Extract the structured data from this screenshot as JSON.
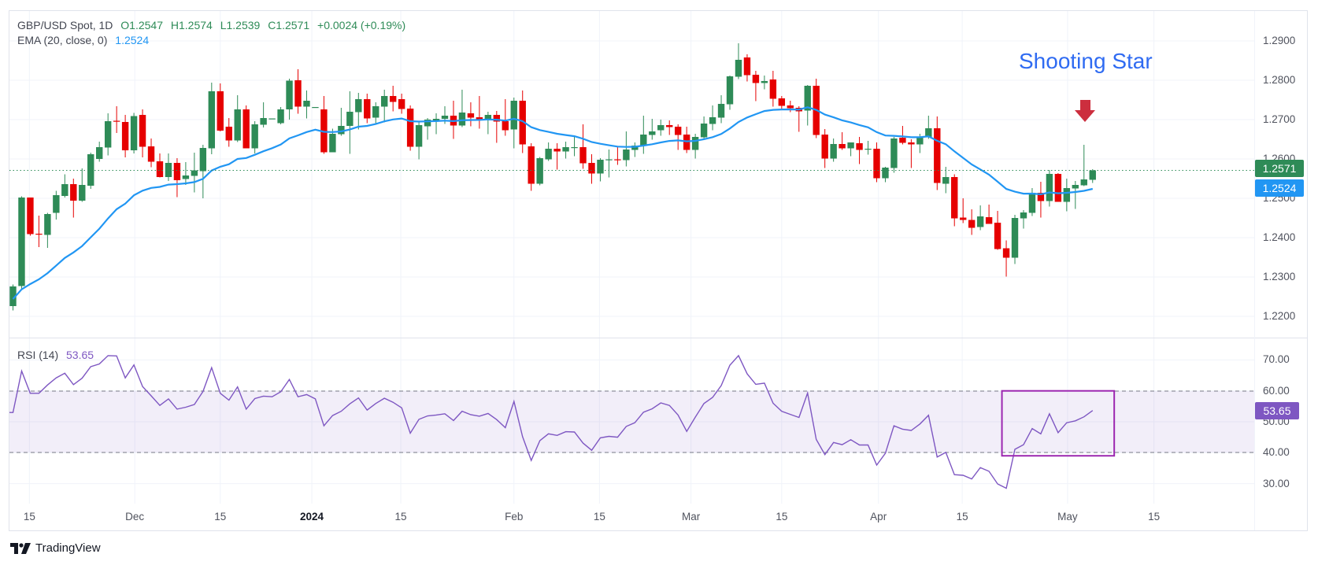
{
  "header": {
    "symbol": "GBP/USD Spot, 1D",
    "open": "O1.2547",
    "high": "H1.2574",
    "low": "L1.2539",
    "close": "C1.2571",
    "change": "+0.0024 (+0.19%)",
    "ema_label": "EMA (20, close, 0)",
    "ema_value": "1.2524",
    "rsi_label": "RSI (14)",
    "rsi_value": "53.65"
  },
  "price_tag": "1.2571",
  "ema_tag": "1.2524",
  "rsi_tag": "53.65",
  "annotation": {
    "text": "Shooting Star",
    "arrow": "down-arrow-icon",
    "arrow_color": "#cc2e3e"
  },
  "brand": {
    "name": "TradingView",
    "icon": "tradingview-logo-icon"
  },
  "colors": {
    "up": "#2e8b57",
    "down": "#e60000",
    "ema": "#2196f3",
    "rsi": "#7e57c2",
    "box": "#9c27b0",
    "grid": "#f0f3fa"
  },
  "chart_data": {
    "type": "candlestick",
    "title": "GBP/USD Spot, 1D",
    "price_ticks": [
      "1.2900",
      "1.2800",
      "1.2700",
      "1.2600",
      "1.2500",
      "1.2400",
      "1.2300",
      "1.2200"
    ],
    "price_range": [
      1.213,
      1.297
    ],
    "x_ticks": [
      {
        "label": "15",
        "bar": 1.9
      },
      {
        "label": "Dec",
        "bar": 14.1
      },
      {
        "label": "15",
        "bar": 24.0
      },
      {
        "label": "2024",
        "bar": 34.6,
        "bold": true
      },
      {
        "label": "15",
        "bar": 44.9
      },
      {
        "label": "Feb",
        "bar": 58.0
      },
      {
        "label": "15",
        "bar": 67.9
      },
      {
        "label": "Mar",
        "bar": 78.5
      },
      {
        "label": "15",
        "bar": 89.0
      },
      {
        "label": "Apr",
        "bar": 100.2
      },
      {
        "label": "15",
        "bar": 109.9
      },
      {
        "label": "May",
        "bar": 122.1
      },
      {
        "label": "15",
        "bar": 132.1
      }
    ],
    "ema_period": 20,
    "ema_seed": 1.2244,
    "last_close": 1.2571,
    "candles": [
      [
        1.2226,
        1.2281,
        1.2215,
        1.2276
      ],
      [
        1.2277,
        1.2505,
        1.2267,
        1.2502
      ],
      [
        1.2502,
        1.2502,
        1.2405,
        1.2409
      ],
      [
        1.241,
        1.2456,
        1.2376,
        1.2409
      ],
      [
        1.2407,
        1.2463,
        1.2374,
        1.246
      ],
      [
        1.2463,
        1.2519,
        1.2446,
        1.2508
      ],
      [
        1.2506,
        1.2561,
        1.2502,
        1.2536
      ],
      [
        1.2536,
        1.255,
        1.2451,
        1.2494
      ],
      [
        1.2494,
        1.2576,
        1.2491,
        1.2534
      ],
      [
        1.2532,
        1.2616,
        1.2524,
        1.2612
      ],
      [
        1.26,
        1.2644,
        1.2593,
        1.263
      ],
      [
        1.2629,
        1.2716,
        1.2609,
        1.2696
      ],
      [
        1.2697,
        1.2734,
        1.2666,
        1.2695
      ],
      [
        1.2694,
        1.2712,
        1.2604,
        1.2622
      ],
      [
        1.2622,
        1.2717,
        1.2614,
        1.2709
      ],
      [
        1.2712,
        1.2726,
        1.2604,
        1.2631
      ],
      [
        1.2632,
        1.2652,
        1.2579,
        1.2593
      ],
      [
        1.2594,
        1.2614,
        1.2553,
        1.2554
      ],
      [
        1.2554,
        1.2614,
        1.2544,
        1.259
      ],
      [
        1.259,
        1.2602,
        1.2503,
        1.2546
      ],
      [
        1.2549,
        1.2592,
        1.2534,
        1.2558
      ],
      [
        1.2557,
        1.2616,
        1.2515,
        1.2571
      ],
      [
        1.2569,
        1.2636,
        1.25,
        1.2628
      ],
      [
        1.2627,
        1.2794,
        1.2612,
        1.2772
      ],
      [
        1.2772,
        1.2792,
        1.267,
        1.2672
      ],
      [
        1.2682,
        1.2704,
        1.2631,
        1.2647
      ],
      [
        1.2647,
        1.2762,
        1.2643,
        1.2726
      ],
      [
        1.2726,
        1.2736,
        1.2627,
        1.2627
      ],
      [
        1.2627,
        1.2696,
        1.2614,
        1.2688
      ],
      [
        1.2687,
        1.2744,
        1.268,
        1.2704
      ],
      [
        1.2702,
        1.2703,
        1.2701,
        1.2703
      ],
      [
        1.2691,
        1.2732,
        1.2688,
        1.2726
      ],
      [
        1.2726,
        1.2804,
        1.27,
        1.2799
      ],
      [
        1.28,
        1.2828,
        1.2715,
        1.2733
      ],
      [
        1.2733,
        1.2774,
        1.2703,
        1.2748
      ],
      [
        1.2731,
        1.2732,
        1.273,
        1.2732
      ],
      [
        1.2726,
        1.276,
        1.2613,
        1.2617
      ],
      [
        1.2617,
        1.2677,
        1.2617,
        1.2664
      ],
      [
        1.2663,
        1.273,
        1.2659,
        1.2684
      ],
      [
        1.2684,
        1.2772,
        1.2613,
        1.272
      ],
      [
        1.2719,
        1.2768,
        1.2675,
        1.2752
      ],
      [
        1.2752,
        1.2766,
        1.2691,
        1.2703
      ],
      [
        1.2705,
        1.2744,
        1.2691,
        1.2734
      ],
      [
        1.2733,
        1.2776,
        1.2693,
        1.276
      ],
      [
        1.276,
        1.2786,
        1.2721,
        1.2745
      ],
      [
        1.2752,
        1.2766,
        1.2715,
        1.2727
      ],
      [
        1.2728,
        1.2736,
        1.2621,
        1.2631
      ],
      [
        1.2631,
        1.2696,
        1.2599,
        1.2686
      ],
      [
        1.2683,
        1.2704,
        1.2649,
        1.27
      ],
      [
        1.2697,
        1.2716,
        1.2663,
        1.2702
      ],
      [
        1.2702,
        1.2734,
        1.2689,
        1.271
      ],
      [
        1.271,
        1.2748,
        1.2651,
        1.2685
      ],
      [
        1.2685,
        1.2776,
        1.2681,
        1.2718
      ],
      [
        1.2716,
        1.2744,
        1.2683,
        1.2705
      ],
      [
        1.2706,
        1.276,
        1.2677,
        1.2701
      ],
      [
        1.27,
        1.272,
        1.2663,
        1.2712
      ],
      [
        1.2712,
        1.2722,
        1.2641,
        1.2695
      ],
      [
        1.2696,
        1.2752,
        1.2659,
        1.2673
      ],
      [
        1.2675,
        1.2756,
        1.2627,
        1.2748
      ],
      [
        1.2748,
        1.2774,
        1.2615,
        1.2637
      ],
      [
        1.2632,
        1.264,
        1.2519,
        1.2537
      ],
      [
        1.2537,
        1.2605,
        1.2533,
        1.2602
      ],
      [
        1.2599,
        1.2642,
        1.2595,
        1.2626
      ],
      [
        1.2626,
        1.264,
        1.2573,
        1.2619
      ],
      [
        1.2619,
        1.2644,
        1.2601,
        1.263
      ],
      [
        1.2629,
        1.2656,
        1.2607,
        1.263
      ],
      [
        1.263,
        1.2688,
        1.2575,
        1.2589
      ],
      [
        1.259,
        1.2612,
        1.2537,
        1.2563
      ],
      [
        1.2563,
        1.2602,
        1.2543,
        1.2598
      ],
      [
        1.2598,
        1.2624,
        1.2553,
        1.2599
      ],
      [
        1.2599,
        1.2631,
        1.2585,
        1.2598
      ],
      [
        1.2597,
        1.267,
        1.2581,
        1.2624
      ],
      [
        1.2623,
        1.2642,
        1.2605,
        1.2634
      ],
      [
        1.2633,
        1.271,
        1.2613,
        1.2662
      ],
      [
        1.2661,
        1.2702,
        1.2649,
        1.267
      ],
      [
        1.2673,
        1.27,
        1.2659,
        1.2686
      ],
      [
        1.2686,
        1.2698,
        1.2661,
        1.2681
      ],
      [
        1.2682,
        1.2688,
        1.2623,
        1.2661
      ],
      [
        1.2662,
        1.2682,
        1.2615,
        1.2623
      ],
      [
        1.2623,
        1.2664,
        1.2601,
        1.2656
      ],
      [
        1.2655,
        1.2708,
        1.2651,
        1.269
      ],
      [
        1.2689,
        1.2736,
        1.2673,
        1.2706
      ],
      [
        1.2705,
        1.2762,
        1.2691,
        1.274
      ],
      [
        1.2739,
        1.2812,
        1.2725,
        1.281
      ],
      [
        1.2809,
        1.2894,
        1.2803,
        1.2852
      ],
      [
        1.2858,
        1.2866,
        1.2797,
        1.2813
      ],
      [
        1.2814,
        1.2824,
        1.2747,
        1.2793
      ],
      [
        1.2793,
        1.2812,
        1.2777,
        1.2798
      ],
      [
        1.2802,
        1.2824,
        1.2733,
        1.2753
      ],
      [
        1.2754,
        1.276,
        1.2727,
        1.2735
      ],
      [
        1.2736,
        1.2748,
        1.2719,
        1.2729
      ],
      [
        1.273,
        1.2734,
        1.2669,
        1.2721
      ],
      [
        1.2723,
        1.2788,
        1.2685,
        1.2786
      ],
      [
        1.2786,
        1.2804,
        1.2653,
        1.2661
      ],
      [
        1.2662,
        1.2676,
        1.2577,
        1.2601
      ],
      [
        1.2601,
        1.2652,
        1.2593,
        1.2638
      ],
      [
        1.2638,
        1.2668,
        1.2623,
        1.2627
      ],
      [
        1.2627,
        1.2642,
        1.2607,
        1.2642
      ],
      [
        1.264,
        1.2656,
        1.2587,
        1.2623
      ],
      [
        1.2625,
        1.2646,
        1.2611,
        1.2626
      ],
      [
        1.2626,
        1.2642,
        1.2541,
        1.2551
      ],
      [
        1.2551,
        1.258,
        1.2541,
        1.2578
      ],
      [
        1.2577,
        1.2656,
        1.2565,
        1.2652
      ],
      [
        1.2654,
        1.2684,
        1.2637,
        1.2641
      ],
      [
        1.2642,
        1.265,
        1.2577,
        1.2637
      ],
      [
        1.2637,
        1.2664,
        1.2615,
        1.2656
      ],
      [
        1.2655,
        1.271,
        1.2651,
        1.2678
      ],
      [
        1.2678,
        1.2708,
        1.2521,
        1.2539
      ],
      [
        1.2537,
        1.258,
        1.2513,
        1.2554
      ],
      [
        1.2554,
        1.2561,
        1.2429,
        1.2449
      ],
      [
        1.2451,
        1.25,
        1.2437,
        1.2445
      ],
      [
        1.2445,
        1.2472,
        1.2407,
        1.2425
      ],
      [
        1.2427,
        1.2482,
        1.2419,
        1.2454
      ],
      [
        1.2452,
        1.2484,
        1.2435,
        1.2435
      ],
      [
        1.2438,
        1.2468,
        1.2369,
        1.2371
      ],
      [
        1.2373,
        1.2393,
        1.2301,
        1.2349
      ],
      [
        1.2349,
        1.2458,
        1.2333,
        1.245
      ],
      [
        1.2449,
        1.247,
        1.2423,
        1.2464
      ],
      [
        1.2463,
        1.2526,
        1.2455,
        1.2514
      ],
      [
        1.2514,
        1.2542,
        1.2451,
        1.2493
      ],
      [
        1.2493,
        1.2572,
        1.2479,
        1.2562
      ],
      [
        1.2562,
        1.2564,
        1.2491,
        1.2491
      ],
      [
        1.2491,
        1.255,
        1.2467,
        1.2526
      ],
      [
        1.2525,
        1.2544,
        1.2473,
        1.2534
      ],
      [
        1.2533,
        1.2636,
        1.2531,
        1.2548
      ],
      [
        1.2547,
        1.2574,
        1.2539,
        1.2571
      ]
    ],
    "rsi": {
      "period": 14,
      "ticks": [
        "70.00",
        "60.00",
        "50.00",
        "40.00",
        "30.00"
      ],
      "band": [
        40,
        60
      ],
      "highlight_box": {
        "from_bar": 114.5,
        "to_bar": 127.5,
        "from_value": 39,
        "to_value": 60
      },
      "values": [
        53.0,
        66.4,
        59.2,
        59.2,
        61.9,
        64.2,
        65.7,
        62.0,
        64.1,
        67.8,
        68.7,
        71.4,
        71.3,
        64.2,
        68.4,
        61.4,
        58.4,
        55.3,
        57.4,
        54.1,
        54.7,
        55.6,
        59.8,
        67.5,
        59.2,
        57.0,
        61.3,
        54.1,
        57.5,
        58.3,
        58.1,
        59.7,
        63.7,
        58.1,
        58.8,
        57.4,
        48.7,
        52.0,
        53.4,
        55.8,
        57.7,
        53.8,
        55.9,
        57.6,
        56.3,
        54.5,
        46.3,
        50.8,
        51.9,
        52.2,
        52.6,
        50.4,
        53.4,
        52.3,
        51.8,
        52.7,
        50.7,
        48.1,
        56.6,
        45.2,
        37.5,
        43.9,
        46.1,
        45.6,
        46.8,
        46.7,
        43.1,
        40.8,
        44.8,
        45.3,
        45.0,
        48.5,
        49.7,
        53.1,
        54.2,
        56.1,
        55.3,
        52.2,
        46.9,
        51.5,
        55.9,
        57.9,
        61.7,
        68.3,
        71.4,
        65.5,
        62.1,
        62.5,
        56.0,
        53.4,
        52.4,
        51.4,
        59.3,
        44.3,
        39.4,
        43.3,
        42.6,
        44.2,
        42.5,
        42.5,
        36.0,
        39.8,
        48.7,
        47.6,
        47.2,
        49.3,
        52.1,
        38.6,
        40.1,
        32.9,
        32.7,
        31.5,
        35.2,
        34.0,
        29.9,
        28.5,
        41.1,
        42.6,
        47.8,
        46.1,
        52.6,
        46.5,
        49.7,
        50.3,
        51.6,
        53.65
      ]
    }
  }
}
